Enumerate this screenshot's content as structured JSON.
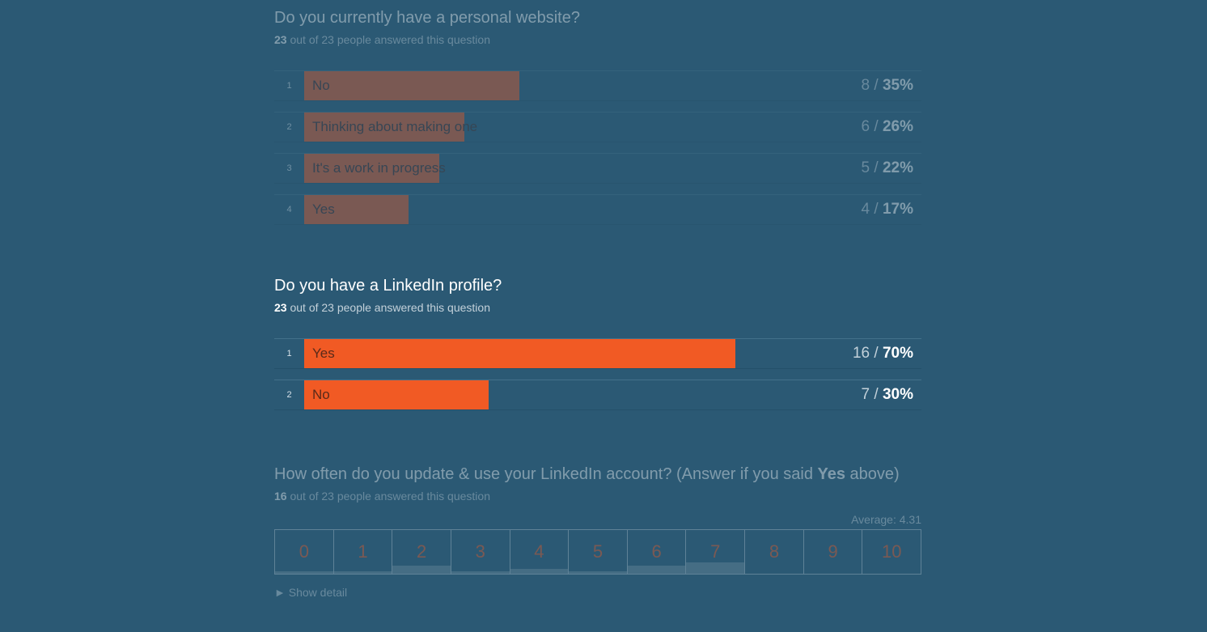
{
  "questions": [
    {
      "title": "Do you currently have a personal website?",
      "answered": "23",
      "answered_suffix": "out of 23 people answered this question",
      "options": [
        {
          "num": "1",
          "label": "No",
          "count": "8",
          "percent": "35%",
          "fraction": 0.35
        },
        {
          "num": "2",
          "label": "Thinking about making one",
          "count": "6",
          "percent": "26%",
          "fraction": 0.26
        },
        {
          "num": "3",
          "label": "It's a work in progress",
          "count": "5",
          "percent": "22%",
          "fraction": 0.22
        },
        {
          "num": "4",
          "label": "Yes",
          "count": "4",
          "percent": "17%",
          "fraction": 0.17
        }
      ]
    },
    {
      "title": "Do you have a LinkedIn profile?",
      "answered": "23",
      "answered_suffix": "out of 23 people answered this question",
      "options": [
        {
          "num": "1",
          "label": "Yes",
          "count": "16",
          "percent": "70%",
          "fraction": 0.7
        },
        {
          "num": "2",
          "label": "No",
          "count": "7",
          "percent": "30%",
          "fraction": 0.3
        }
      ]
    },
    {
      "title_prefix": "How often do you update & use your LinkedIn account? (Answer if you said ",
      "title_bold": "Yes",
      "title_suffix": " above)",
      "answered": "16",
      "answered_suffix": "out of 23 people answered this question",
      "average": "Average: 4.31",
      "scale": [
        {
          "label": "0",
          "share": 0.06
        },
        {
          "label": "1",
          "share": 0.06
        },
        {
          "label": "2",
          "share": 0.19
        },
        {
          "label": "3",
          "share": 0.06
        },
        {
          "label": "4",
          "share": 0.12
        },
        {
          "label": "5",
          "share": 0.06
        },
        {
          "label": "6",
          "share": 0.19
        },
        {
          "label": "7",
          "share": 0.25
        },
        {
          "label": "8",
          "share": 0
        },
        {
          "label": "9",
          "share": 0
        },
        {
          "label": "10",
          "share": 0
        }
      ],
      "show_detail": "► Show detail"
    }
  ],
  "colors": {
    "background": "#2b5974",
    "bar": "#f15a24",
    "scale_fill": "#6d8b9e"
  }
}
